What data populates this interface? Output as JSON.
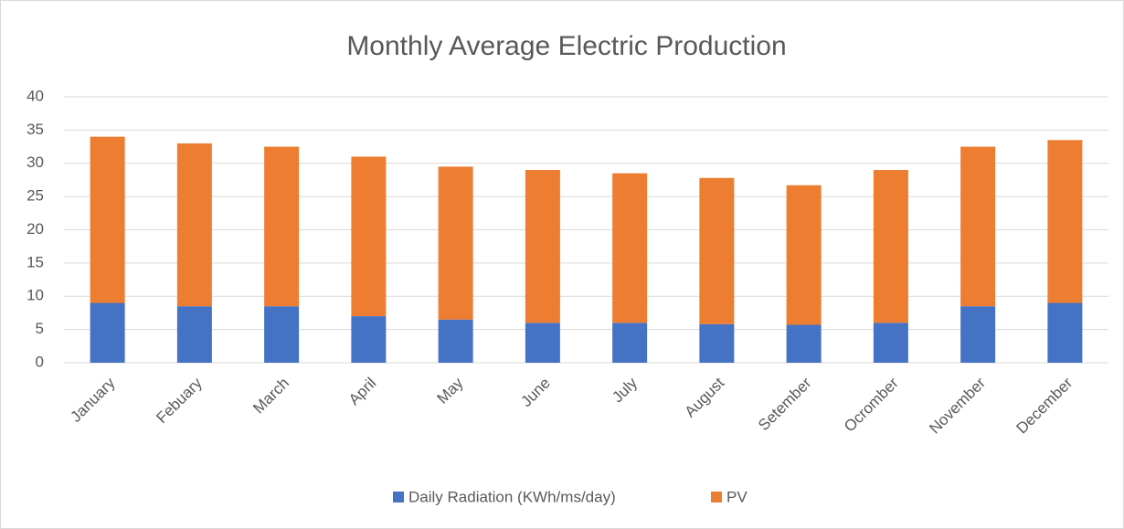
{
  "chart_data": {
    "type": "stacked-bar",
    "title": "Monthly Average Electric Production",
    "categories": [
      "January",
      "Febuary",
      "March",
      "April",
      "May",
      "June",
      "July",
      "August",
      "Setember",
      "Ocromber",
      "November",
      "December"
    ],
    "series": [
      {
        "name": "Daily Radiation (KWh/ms/day)",
        "color": "#4472c4",
        "values": [
          9,
          8.5,
          8.5,
          7,
          6.5,
          6,
          6,
          5.8,
          5.7,
          6,
          8.5,
          9
        ]
      },
      {
        "name": "PV",
        "color": "#ed7d31",
        "values": [
          25,
          24.5,
          24,
          24,
          23,
          23,
          22.5,
          22,
          21,
          23,
          24,
          24.5
        ]
      }
    ],
    "ylim": [
      0,
      40
    ],
    "yticks": [
      0,
      5,
      10,
      15,
      20,
      25,
      30,
      35,
      40
    ],
    "grid": true,
    "legend": "bottom"
  }
}
